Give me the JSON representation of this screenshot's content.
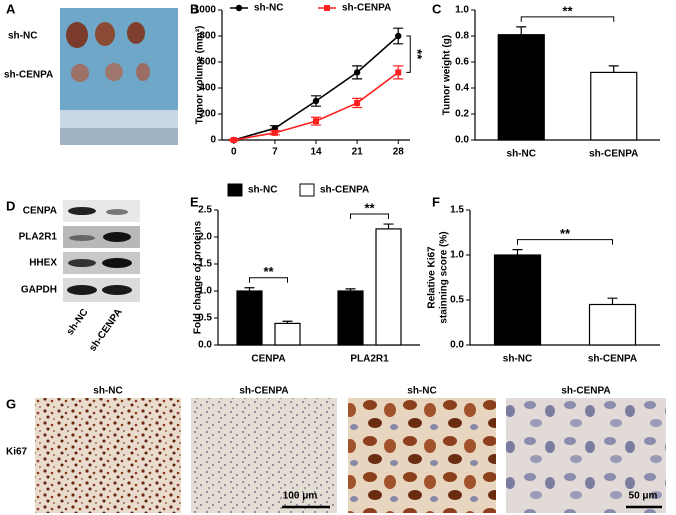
{
  "panel_letters": [
    "A",
    "B",
    "C",
    "D",
    "E",
    "F",
    "G"
  ],
  "photo": {
    "groups": [
      "sh-NC",
      "sh-CENPA"
    ]
  },
  "blot": {
    "proteins": [
      "CENPA",
      "PLA2R1",
      "HHEX",
      "GAPDH"
    ],
    "groups": [
      "sh-NC",
      "sh-CENPA"
    ]
  },
  "ihc": {
    "row_label": "Ki67",
    "columns": [
      "sh-NC",
      "sh-CENPA",
      "sh-NC",
      "sh-CENPA"
    ],
    "scale_bars": [
      "100 μm",
      "50 μm"
    ]
  },
  "chart_data": [
    {
      "type": "line",
      "ylabel": "Tumor volume (mm³)",
      "x": [
        0,
        7,
        14,
        21,
        28
      ],
      "xlim": [
        -2,
        30
      ],
      "xticks": [
        0,
        7,
        14,
        21,
        28
      ],
      "ylim": [
        0,
        1000
      ],
      "yticks": [
        0,
        200,
        400,
        600,
        800,
        1000
      ],
      "legend": "top",
      "series": [
        {
          "name": "sh-NC",
          "color": "#000000",
          "marker": "circle",
          "values": [
            0,
            90,
            300,
            520,
            800
          ],
          "errors": [
            5,
            20,
            40,
            50,
            60
          ]
        },
        {
          "name": "sh-CENPA",
          "color": "#ff2020",
          "marker": "square",
          "values": [
            0,
            55,
            145,
            285,
            520
          ],
          "errors": [
            5,
            15,
            30,
            35,
            50
          ]
        }
      ],
      "annotations": [
        "**"
      ]
    },
    {
      "type": "bar",
      "ylabel": "Tumor weight (g)",
      "categories": [
        "sh-NC",
        "sh-CENPA"
      ],
      "ylim": [
        0,
        1
      ],
      "yticks": [
        {
          "value": 0,
          "label": "0.0"
        },
        0.2,
        0.4,
        0.6,
        0.8,
        {
          "value": 1,
          "label": "1.0"
        }
      ],
      "series": [
        {
          "values": [
            0.81,
            0.52
          ],
          "errors": [
            0.06,
            0.05
          ]
        }
      ],
      "colors": [
        "#000000",
        "#ffffff"
      ],
      "annotations": [
        "**"
      ]
    },
    {
      "type": "grouped_bar",
      "ylabel": "Fold change of proteins",
      "categories": [
        "CENPA",
        "PLA2R1"
      ],
      "ylim": [
        0,
        2.5
      ],
      "yticks": [
        {
          "value": 0,
          "label": "0.0"
        },
        0.5,
        {
          "value": 1,
          "label": "1.0"
        },
        1.5,
        {
          "value": 2,
          "label": "2.0"
        },
        2.5
      ],
      "legend": "top",
      "series": [
        {
          "name": "sh-NC",
          "color": "#000000",
          "values": [
            1.0,
            1.0
          ],
          "errors": [
            0.06,
            0.04
          ]
        },
        {
          "name": "sh-CENPA",
          "color": "#ffffff",
          "values": [
            0.4,
            2.15
          ],
          "errors": [
            0.04,
            0.09
          ]
        }
      ],
      "annotations": [
        "**",
        "**"
      ]
    },
    {
      "type": "bar",
      "ylabel": [
        "Relative Ki67",
        "stainning score (%)"
      ],
      "categories": [
        "sh-NC",
        "sh-CENPA"
      ],
      "ylim": [
        0,
        1.5
      ],
      "yticks": [
        {
          "value": 0,
          "label": "0.0"
        },
        0.5,
        {
          "value": 1,
          "label": "1.0"
        },
        1.5
      ],
      "series": [
        {
          "values": [
            1.0,
            0.45
          ],
          "errors": [
            0.06,
            0.07
          ]
        }
      ],
      "colors": [
        "#000000",
        "#ffffff"
      ],
      "annotations": [
        "**"
      ]
    }
  ]
}
